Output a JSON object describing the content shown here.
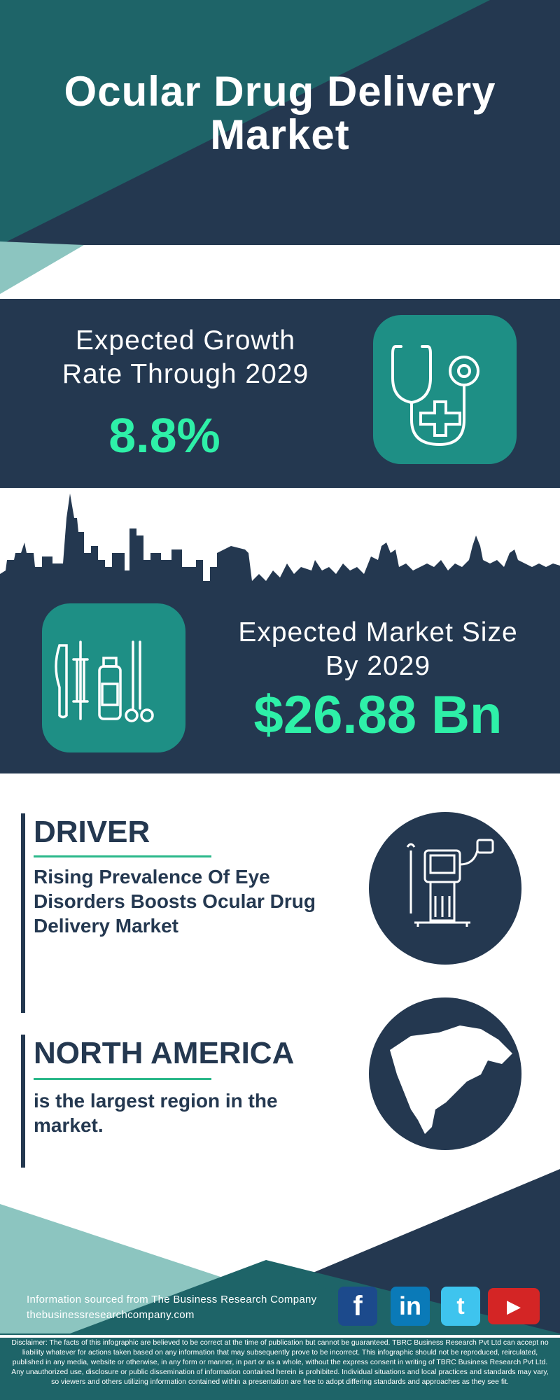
{
  "title": "Ocular Drug Delivery Market",
  "growth": {
    "label_line1": "Expected Growth",
    "label_line2": "Rate Through 2029",
    "value": "8.8%",
    "icon": "stethoscope-icon"
  },
  "market": {
    "label_line1": "Expected Market Size",
    "label_line2": "By 2029",
    "value": "$26.88 Bn",
    "icon": "medical-tools-icon"
  },
  "driver": {
    "heading": "DRIVER",
    "text": "Rising Prevalence Of Eye Disorders Boosts Ocular Drug Delivery Market",
    "icon": "medical-device-icon"
  },
  "region": {
    "heading": "NORTH AMERICA",
    "text": "is the largest region in the market.",
    "icon": "north-america-map-icon"
  },
  "footer": {
    "source": "Information sourced from The Business Research Company",
    "url": "thebusinessresearchcompany.com",
    "social": [
      {
        "name": "facebook",
        "label": "f",
        "color": "#1c4a8c"
      },
      {
        "name": "linkedin",
        "label": "in",
        "color": "#0a7ab8"
      },
      {
        "name": "twitter",
        "label": "t",
        "color": "#3ec4ee"
      },
      {
        "name": "youtube",
        "label": "▶",
        "color": "#d42525"
      }
    ]
  },
  "disclaimer": "Disclaimer: The facts of this infographic are believed to be correct at the time of publication but cannot be guaranteed. TBRC Business Research Pvt Ltd can accept no liability whatever for actions taken based on any information that may subsequently prove to be incorrect. This infographic should not be reproduced, reirculated, published in any media, website or otherwise, in any form or manner, in part or as a whole, without the express consent in writing of TBRC Business Research Pvt Ltd. Any unauthorized use, disclosure or public dissemination of information contained herein is prohibited. Individual situations and local practices and standards may vary, so viewers and others utilizing information contained within a presentation are free to adopt differing standards and approaches as they see fit.",
  "colors": {
    "navy": "#243850",
    "teal": "#1e6468",
    "light_teal": "#8cc5c0",
    "accent": "#2ef0a8",
    "icon_box": "#1e8f85"
  }
}
